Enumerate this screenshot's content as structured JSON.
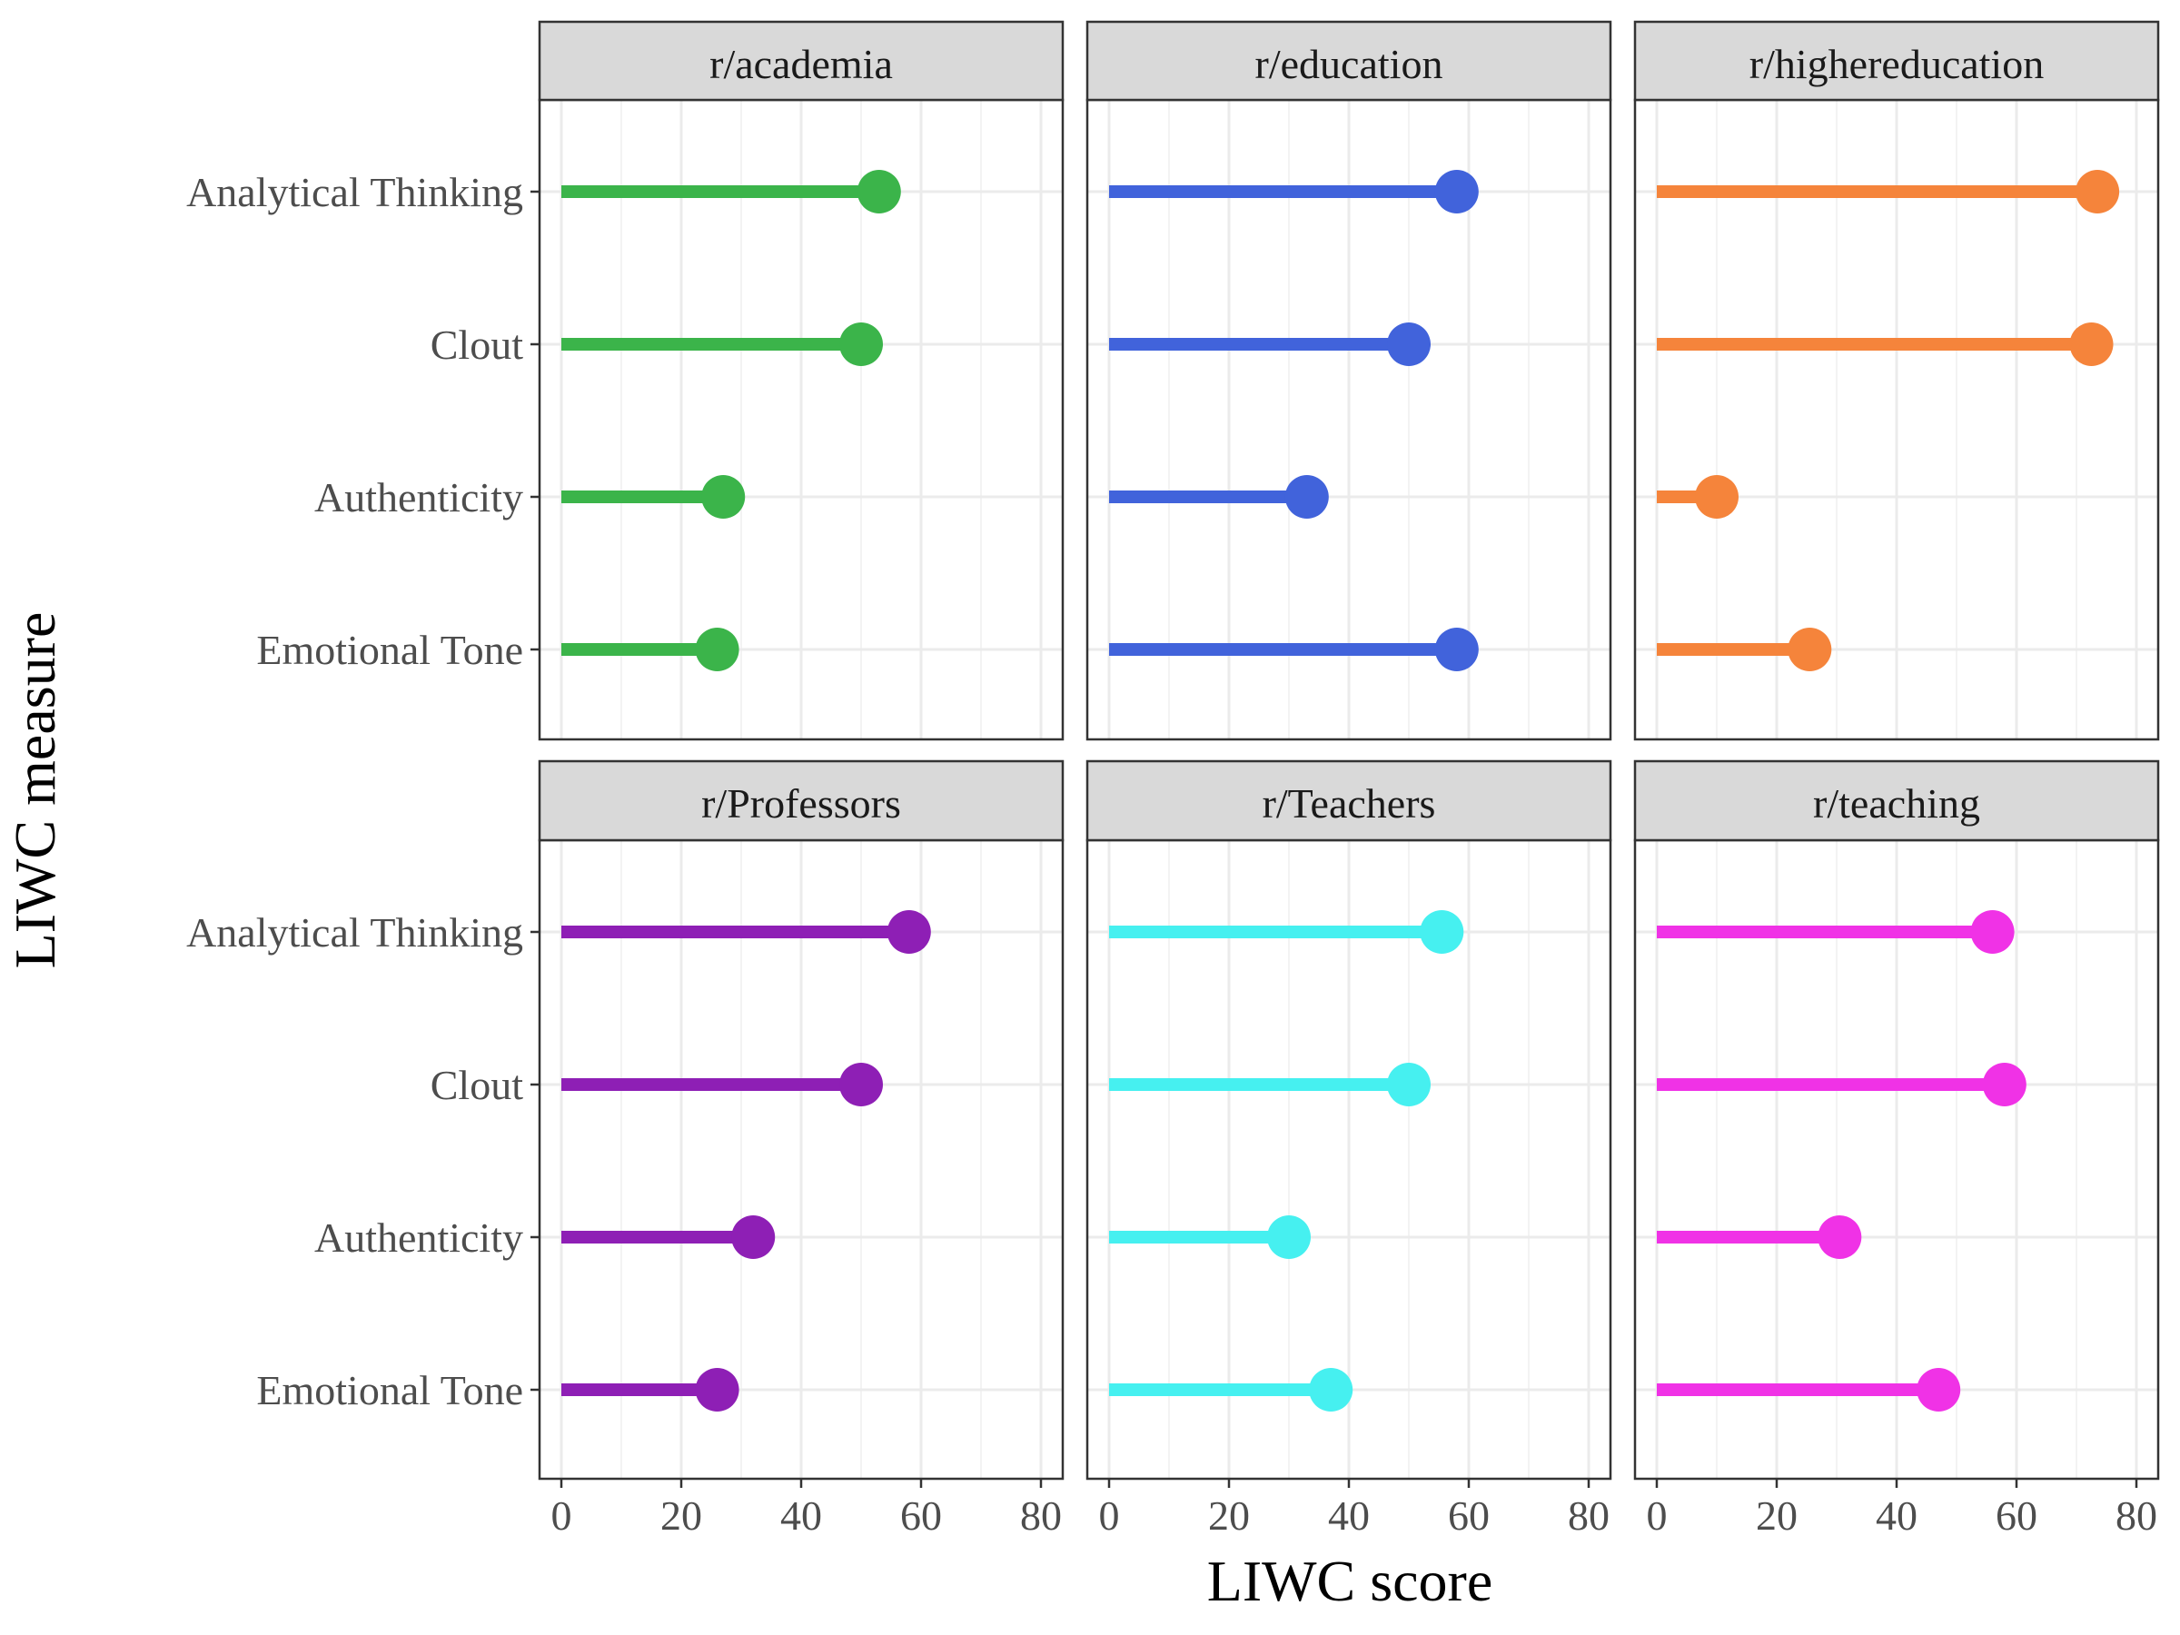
{
  "chart_data": {
    "type": "lollipop",
    "xlabel": "LIWC score",
    "ylabel": "LIWC measure",
    "xlim": [
      0,
      80
    ],
    "x_ticks": [
      "0",
      "20",
      "40",
      "60",
      "80"
    ],
    "categories": [
      "Analytical Thinking",
      "Clout",
      "Authenticity",
      "Emotional Tone"
    ],
    "grid": true,
    "legend": "none",
    "panels": [
      {
        "name": "r/academia",
        "color": "#3bb44a",
        "values": [
          53,
          50,
          27,
          26
        ]
      },
      {
        "name": "r/education",
        "color": "#4163db",
        "values": [
          58,
          50,
          33,
          58
        ]
      },
      {
        "name": "r/highereducation",
        "color": "#f5843b",
        "values": [
          73.5,
          72.5,
          10,
          25.5
        ]
      },
      {
        "name": "r/Professors",
        "color": "#8e1fb5",
        "values": [
          58,
          50,
          32,
          26
        ]
      },
      {
        "name": "r/Teachers",
        "color": "#46f0f0",
        "values": [
          55.5,
          50,
          30,
          37
        ]
      },
      {
        "name": "r/teaching",
        "color": "#f032e6",
        "values": [
          56,
          58,
          30.5,
          47
        ]
      }
    ]
  }
}
